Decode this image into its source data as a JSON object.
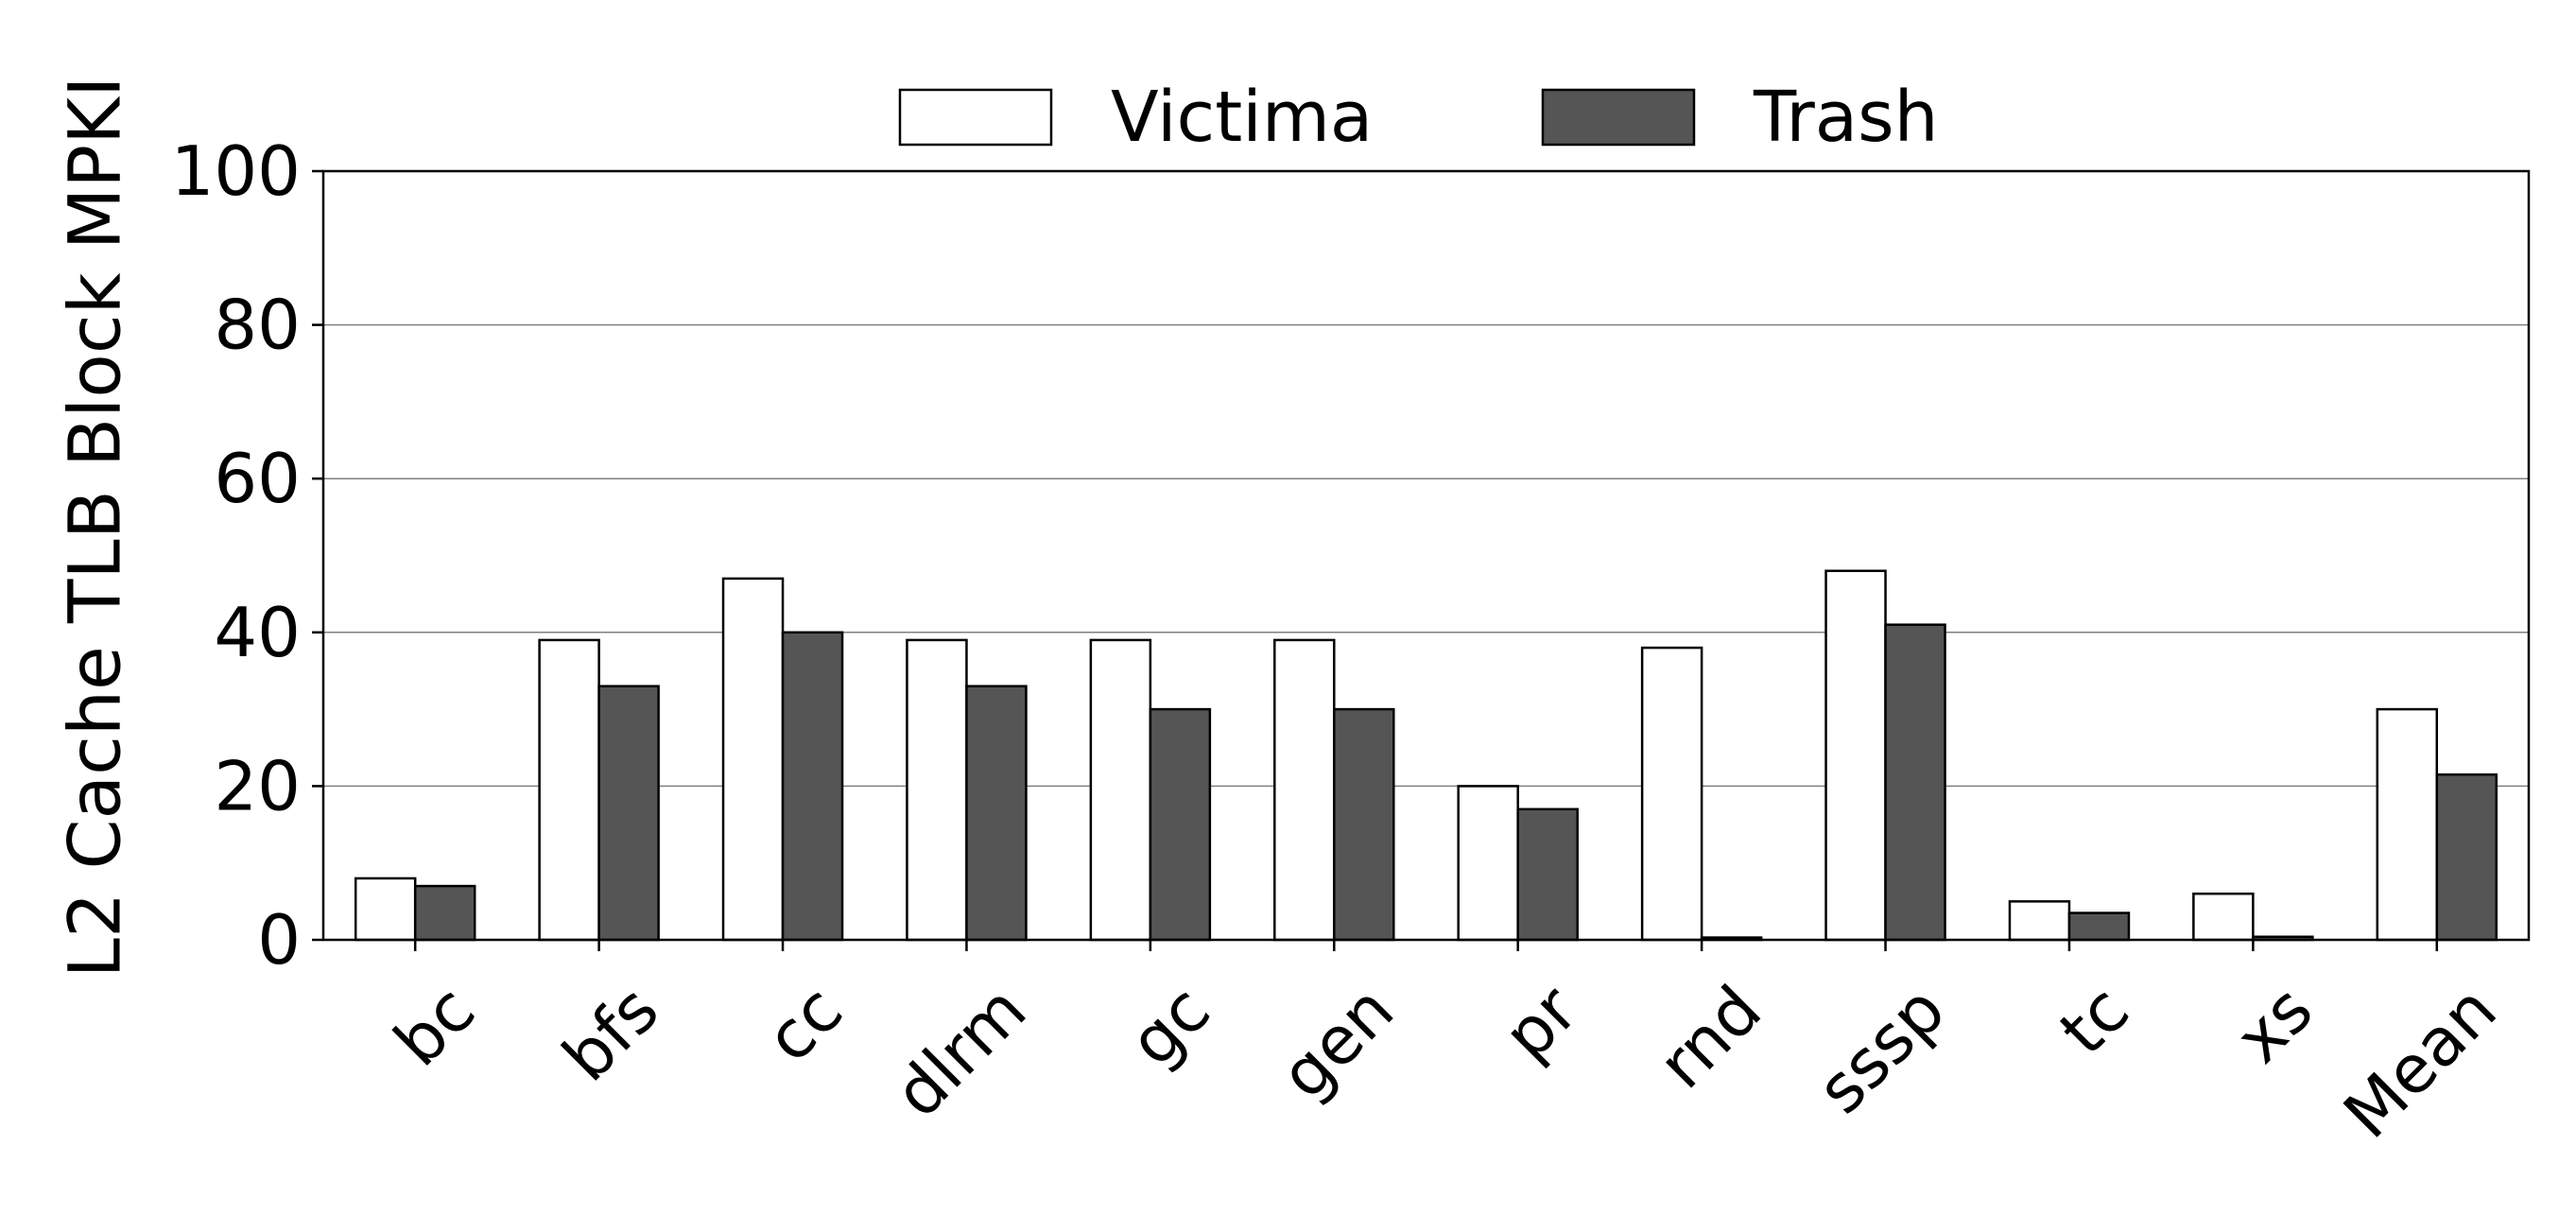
{
  "chart_data": {
    "type": "bar",
    "ylabel": "L2 Cache TLB Block MPKI",
    "xlabel": "",
    "title": "",
    "ylim": [
      0,
      100
    ],
    "yticks": [
      0,
      20,
      40,
      60,
      80,
      100
    ],
    "grid": "horizontal",
    "legend_position": "top-center",
    "categories": [
      "bc",
      "bfs",
      "cc",
      "dlrm",
      "gc",
      "gen",
      "pr",
      "rnd",
      "sssp",
      "tc",
      "xs",
      "Mean"
    ],
    "series": [
      {
        "name": "Victima",
        "color": "#ffffff",
        "values": [
          8,
          39,
          47,
          39,
          39,
          39,
          20,
          38,
          48,
          5,
          6,
          30
        ]
      },
      {
        "name": "Trash",
        "color": "#555555",
        "values": [
          7,
          33,
          40,
          33,
          30,
          30,
          17,
          0.3,
          41,
          3.5,
          0.4,
          21.5
        ]
      }
    ],
    "colors": {
      "axis": "#000000",
      "grid": "#808080",
      "bar_edge": "#000000"
    }
  }
}
